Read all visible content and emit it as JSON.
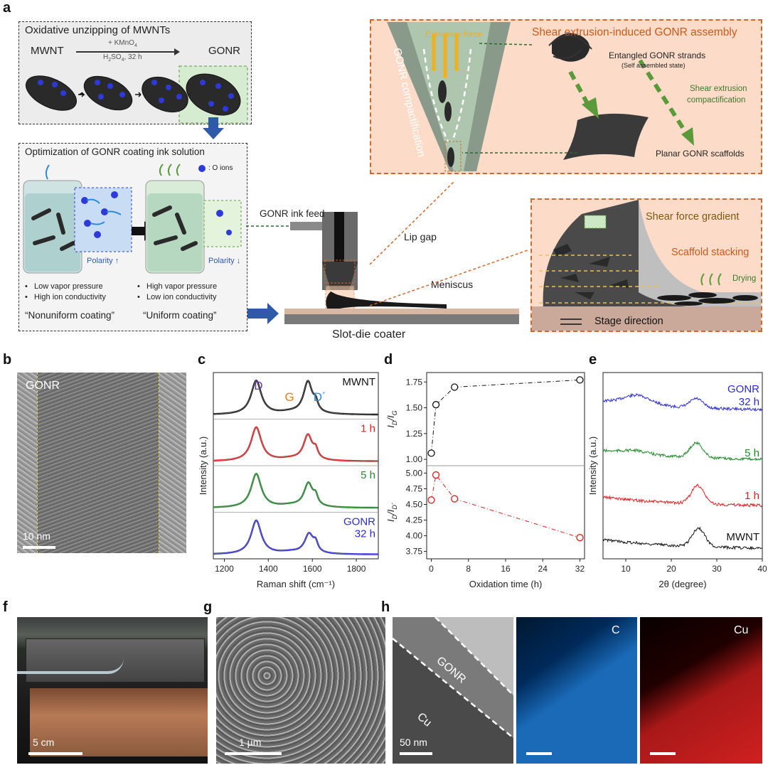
{
  "figure": {
    "panel_labels": {
      "a": "a",
      "b": "b",
      "c": "c",
      "d": "d",
      "e": "e",
      "f": "f",
      "g": "g",
      "h": "h"
    }
  },
  "panel_a": {
    "unzip_title": "Oxidative unzipping of MWNTs",
    "mwnt": "MWNT",
    "gonr": "GONR",
    "reagent_top": "+ KMnO",
    "reagent_top_sub": "4",
    "reagent_bottom_1": "H",
    "reagent_bottom_sub1": "2",
    "reagent_bottom_2": "SO",
    "reagent_bottom_sub2": "4",
    "reagent_bottom_3": ", 32 h",
    "ink_title": "Optimization of GONR coating ink solution",
    "o_ions": ": O ions",
    "polarity_up": "Polarity ↑",
    "polarity_down": "Polarity ↓",
    "left_bullets": [
      "Low vapor pressure",
      "High ion conductivity"
    ],
    "right_bullets": [
      "High vapor pressure",
      "Low ion conductivity"
    ],
    "nonuniform": "“Nonuniform coating”",
    "uniform": "“Uniform coating”",
    "ink_feed": "GONR ink feed",
    "lip_gap": "Lip gap",
    "meniscus": "Meniscus",
    "coater": "Slot-die coater",
    "shear_title": "Shear extrusion-induced GONR assembly",
    "extrusion_force": "Extrusion force",
    "compactification": "GONR compactification",
    "entangled": "Entangled GONR strands",
    "self_assembled": "(Self assembled state)",
    "shear_compact_1": "Shear extrusion",
    "shear_compact_2": "compactification",
    "planar": "Planar GONR scaffolds",
    "shear_gradient": "Shear force gradient",
    "scaffold_stacking": "Scaffold stacking",
    "drying": "Drying",
    "stage_direction": "Stage direction"
  },
  "panel_b": {
    "label": "GONR",
    "scale": "10 nm"
  },
  "chart_data": [
    {
      "type": "line",
      "panel": "c",
      "xlabel": "Raman shift (cm⁻¹)",
      "ylabel": "Intensity (a.u.)",
      "xlim": [
        1150,
        1900
      ],
      "xticks": [
        1200,
        1400,
        1600,
        1800
      ],
      "peak_labels": [
        "D",
        "G",
        "D´"
      ],
      "series": [
        {
          "name": "GONR 32 h",
          "label_lines": [
            "GONR",
            "32 h"
          ],
          "color": "#2b2bd6",
          "D": 1345,
          "G": 1585,
          "Dp": 1615,
          "ID": 1.0,
          "IG": 0.58
        },
        {
          "name": "5 h",
          "label_lines": [
            "5 h"
          ],
          "color": "#1f8a2a",
          "D": 1345,
          "G": 1582,
          "Dp": 1615,
          "ID": 1.0,
          "IG": 0.7
        },
        {
          "name": "1 h",
          "label_lines": [
            "1 h"
          ],
          "color": "#e02020",
          "D": 1345,
          "G": 1580,
          "Dp": 1615,
          "ID": 1.0,
          "IG": 0.75
        },
        {
          "name": "MWNT",
          "label_lines": [
            "MWNT"
          ],
          "color": "#111111",
          "D": 1345,
          "G": 1580,
          "Dp": 1615,
          "ID": 1.0,
          "IG": 0.95
        }
      ]
    },
    {
      "type": "scatter",
      "panel": "d",
      "xlabel": "Oxidation time (h)",
      "xlim": [
        -1,
        33
      ],
      "xticks": [
        0,
        8,
        16,
        24,
        32
      ],
      "top": {
        "ylabel_main": "I",
        "ylabel_sub1": "D",
        "ylabel_mid": "/I",
        "ylabel_sub2": "G",
        "ylim": [
          0.98,
          1.8
        ],
        "yticks": [
          1.0,
          1.25,
          1.5,
          1.75
        ],
        "x": [
          0,
          1,
          5,
          32
        ],
        "y": [
          1.06,
          1.53,
          1.7,
          1.77
        ],
        "color": "#111111"
      },
      "bottom": {
        "ylabel_main": "I",
        "ylabel_sub1": "D",
        "ylabel_mid": "/I",
        "ylabel_sub2": "D´",
        "ylim": [
          3.7,
          5.05
        ],
        "yticks": [
          3.75,
          4.0,
          4.25,
          4.5,
          4.75,
          5.0
        ],
        "x": [
          0,
          1,
          5,
          32
        ],
        "y": [
          4.57,
          4.97,
          4.59,
          3.97
        ],
        "color": "#e02020"
      }
    },
    {
      "type": "line",
      "panel": "e",
      "xlabel": "2θ (degree)",
      "ylabel": "Intensity (a.u.)",
      "xlim": [
        5,
        40
      ],
      "xticks": [
        10,
        20,
        30,
        40
      ],
      "series": [
        {
          "name": "GONR 32 h",
          "label_lines": [
            "GONR",
            "32 h"
          ],
          "color": "#2b2bd6",
          "peak1": 12.5,
          "amp1": 0.8,
          "peak2": 25.5,
          "amp2": 0.8
        },
        {
          "name": "5 h",
          "label_lines": [
            "5 h"
          ],
          "color": "#1f8a2a",
          "peak1": 12.0,
          "amp1": 0.3,
          "peak2": 25.5,
          "amp2": 1.3
        },
        {
          "name": "1 h",
          "label_lines": [
            "1 h"
          ],
          "color": "#e02020",
          "peak1": 12.0,
          "amp1": 0.0,
          "peak2": 25.8,
          "amp2": 1.6
        },
        {
          "name": "MWNT",
          "label_lines": [
            "MWNT"
          ],
          "color": "#111111",
          "peak1": 12.0,
          "amp1": 0.0,
          "peak2": 26.0,
          "amp2": 1.6
        }
      ]
    }
  ],
  "panel_f": {
    "scale": "5 cm"
  },
  "panel_g": {
    "scale": "1 µm"
  },
  "panel_h": {
    "gonr": "GONR",
    "cu_label": "Cu",
    "scale": "50 nm",
    "c_map": "C",
    "cu_map": "Cu"
  }
}
